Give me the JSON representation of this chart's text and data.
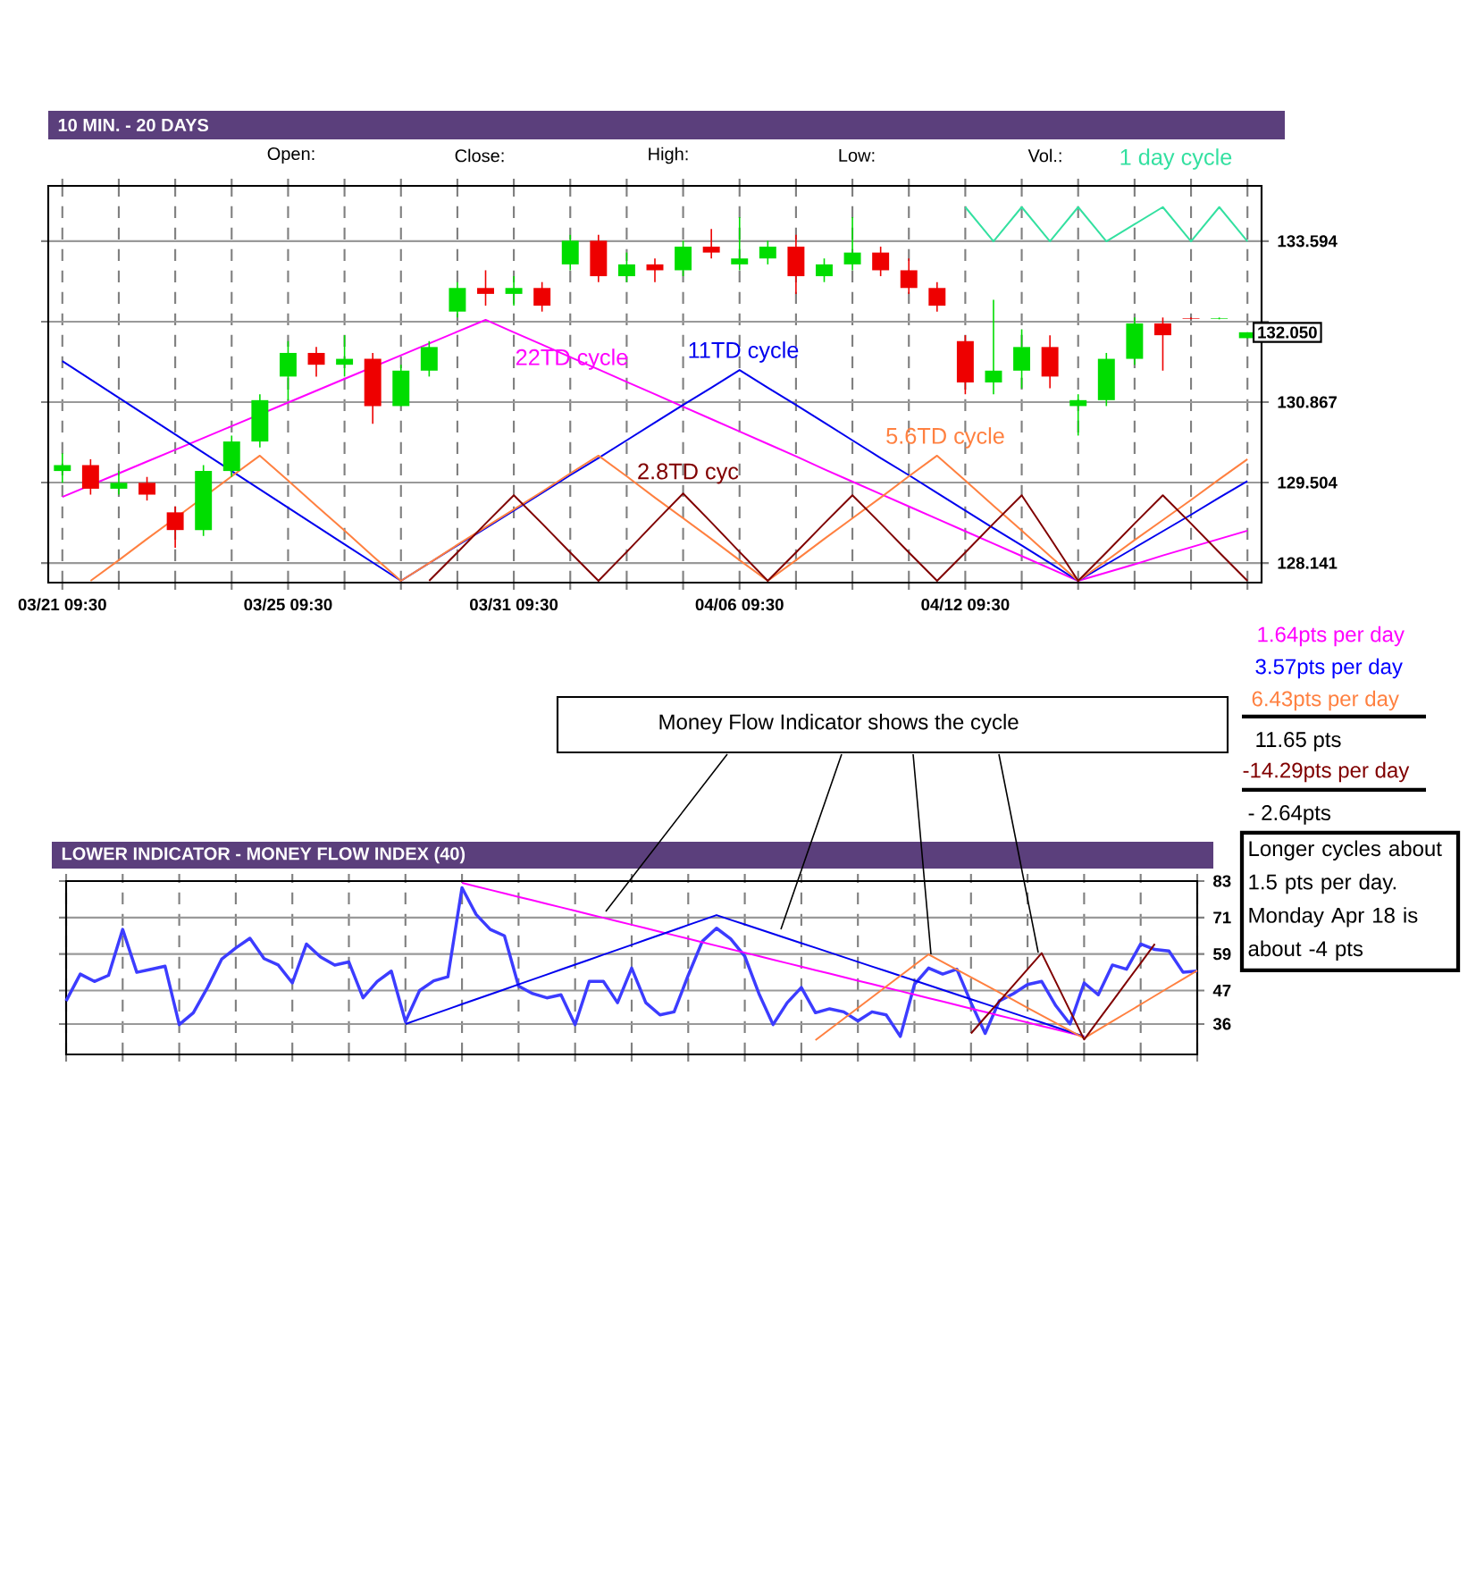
{
  "chart_data": [
    {
      "type": "candlestick",
      "title": "10 MIN. - 20 DAYS",
      "categories": [
        "03/21 09:30",
        null,
        null,
        null,
        null,
        null,
        null,
        null,
        "03/25 09:30",
        null,
        null,
        null,
        null,
        null,
        null,
        null,
        "03/31 09:30",
        null,
        null,
        null,
        null,
        null,
        null,
        null,
        "04/06 09:30",
        null,
        null,
        null,
        null,
        null,
        null,
        null,
        "04/12 09:30",
        null,
        null,
        null,
        null,
        null,
        null,
        null,
        null,
        null,
        null
      ],
      "ohlc": [
        [
          129.7,
          130.0,
          129.5,
          129.8
        ],
        [
          129.8,
          129.9,
          129.3,
          129.4
        ],
        [
          129.4,
          129.7,
          129.3,
          129.5
        ],
        [
          129.5,
          129.6,
          129.2,
          129.3
        ],
        [
          129.0,
          129.1,
          128.4,
          128.7
        ],
        [
          128.7,
          129.8,
          128.6,
          129.7
        ],
        [
          129.7,
          130.3,
          129.6,
          130.2
        ],
        [
          130.2,
          131.0,
          130.1,
          130.9
        ],
        [
          131.3,
          131.9,
          130.9,
          131.7
        ],
        [
          131.7,
          131.8,
          131.3,
          131.5
        ],
        [
          131.5,
          132.0,
          131.3,
          131.6
        ],
        [
          131.6,
          131.7,
          130.5,
          130.8
        ],
        [
          130.8,
          131.5,
          130.8,
          131.4
        ],
        [
          131.4,
          131.9,
          131.3,
          131.8
        ],
        [
          132.4,
          132.9,
          132.3,
          132.8
        ],
        [
          132.8,
          133.1,
          132.5,
          132.7
        ],
        [
          132.7,
          133.0,
          132.5,
          132.8
        ],
        [
          132.8,
          132.9,
          132.4,
          132.5
        ],
        [
          133.2,
          133.7,
          133.1,
          133.6
        ],
        [
          133.6,
          133.7,
          132.9,
          133.0
        ],
        [
          133.0,
          133.4,
          132.9,
          133.2
        ],
        [
          133.2,
          133.3,
          132.9,
          133.1
        ],
        [
          133.1,
          133.6,
          133.0,
          133.5
        ],
        [
          133.5,
          133.8,
          133.3,
          133.4
        ],
        [
          133.2,
          134.0,
          133.1,
          133.3
        ],
        [
          133.3,
          133.6,
          133.2,
          133.5
        ],
        [
          133.5,
          133.7,
          132.7,
          133.0
        ],
        [
          133.0,
          133.3,
          132.9,
          133.2
        ],
        [
          133.2,
          134.0,
          133.1,
          133.4
        ],
        [
          133.4,
          133.5,
          133.0,
          133.1
        ],
        [
          133.1,
          133.3,
          132.7,
          132.8
        ],
        [
          132.8,
          132.9,
          132.4,
          132.5
        ],
        [
          131.9,
          132.0,
          131.0,
          131.2
        ],
        [
          131.2,
          132.6,
          131.0,
          131.4
        ],
        [
          131.4,
          132.1,
          131.1,
          131.8
        ],
        [
          131.8,
          132.0,
          131.1,
          131.3
        ],
        [
          130.8,
          131.0,
          130.3,
          130.9
        ],
        [
          130.9,
          131.7,
          130.8,
          131.6
        ],
        [
          131.6,
          132.3,
          131.5,
          132.2
        ],
        [
          132.2,
          132.3,
          131.4,
          132.0
        ],
        [
          132.29,
          132.3,
          132.27,
          132.28
        ],
        [
          132.28,
          132.3,
          132.27,
          132.29
        ],
        [
          131.95,
          132.05,
          131.95,
          132.05
        ]
      ],
      "colors": [
        "#00dd00",
        "#ee0000",
        "#00dd00",
        "#ee0000",
        "#ee0000",
        "#00dd00",
        "#00dd00",
        "#00dd00",
        "#00dd00",
        "#ee0000",
        "#00dd00",
        "#ee0000",
        "#00dd00",
        "#00dd00",
        "#00dd00",
        "#ee0000",
        "#00dd00",
        "#ee0000",
        "#00dd00",
        "#ee0000",
        "#00dd00",
        "#ee0000",
        "#00dd00",
        "#ee0000",
        "#00dd00",
        "#00dd00",
        "#ee0000",
        "#00dd00",
        "#00dd00",
        "#ee0000",
        "#ee0000",
        "#ee0000",
        "#ee0000",
        "#00dd00",
        "#00dd00",
        "#ee0000",
        "#00dd00",
        "#00dd00",
        "#00dd00",
        "#ee0000",
        "#ee0000",
        "#00dd00",
        "#00dd00"
      ],
      "series": [
        {
          "type": "line",
          "color": "#ff00ff",
          "values": [
            129.26,
            null,
            129.66,
            129.86,
            130.06,
            130.26,
            130.46,
            null,
            130.86,
            131.06,
            131.26,
            null,
            131.66,
            131.86,
            132.06,
            132.26,
            132.05,
            131.84,
            131.63,
            131.42,
            131.21,
            131.0,
            130.79,
            130.58,
            130.37,
            130.16,
            129.95,
            129.73,
            129.52,
            129.31,
            129.1,
            128.89,
            128.68,
            128.47,
            128.26,
            128.05,
            127.84,
            127.98,
            128.12,
            128.27,
            128.41,
            128.55,
            128.69
          ]
        },
        {
          "type": "line",
          "color": "#0000ee",
          "values": [
            131.56,
            131.25,
            130.94,
            130.63,
            130.32,
            130.01,
            129.7,
            129.39,
            129.08,
            128.77,
            128.46,
            128.15,
            127.84,
            null,
            128.44,
            128.73,
            129.03,
            129.33,
            129.63,
            129.92,
            130.22,
            130.52,
            130.82,
            131.11,
            131.41,
            131.11,
            130.82,
            130.52,
            130.22,
            129.92,
            129.63,
            129.33,
            129.03,
            128.73,
            128.44,
            128.14,
            127.84,
            128.12,
            128.4,
            128.68,
            128.96,
            129.25,
            129.53
          ]
        },
        {
          "type": "line",
          "color": "#ff8040",
          "values": [
            null,
            127.84,
            128.19,
            128.55,
            128.9,
            null,
            129.61,
            129.96,
            129.54,
            129.11,
            128.69,
            128.26,
            127.84,
            128.14,
            128.45,
            128.75,
            129.05,
            129.35,
            129.66,
            129.96,
            129.61,
            129.25,
            128.9,
            128.55,
            128.19,
            127.84,
            128.19,
            128.55,
            128.9,
            129.25,
            129.61,
            129.96,
            129.54,
            129.11,
            128.69,
            128.26,
            127.84,
            128.18,
            128.53,
            128.87,
            129.21,
            129.56,
            129.9
          ]
        },
        {
          "type": "line",
          "color": "#800000",
          "values": [
            null,
            null,
            null,
            null,
            null,
            null,
            null,
            null,
            null,
            null,
            null,
            null,
            null,
            127.84,
            128.32,
            128.81,
            129.29,
            128.81,
            128.32,
            127.84,
            128.33,
            128.83,
            129.32,
            128.83,
            128.33,
            127.84,
            128.32,
            128.81,
            129.29,
            128.81,
            128.32,
            127.84,
            128.32,
            128.81,
            129.29,
            128.57,
            127.84,
            128.32,
            128.81,
            129.29,
            128.81,
            128.32,
            127.84
          ]
        },
        {
          "type": "line",
          "name": "1 day cycle",
          "color": "#33e0a0",
          "values": [
            null,
            null,
            null,
            null,
            null,
            null,
            null,
            null,
            null,
            null,
            null,
            null,
            null,
            null,
            null,
            null,
            null,
            null,
            null,
            null,
            null,
            null,
            null,
            null,
            null,
            null,
            null,
            null,
            null,
            null,
            null,
            null,
            134.17,
            133.59,
            134.17,
            133.59,
            134.17,
            133.59,
            133.88,
            134.17,
            133.59,
            134.17,
            133.59
          ]
        }
      ],
      "ylim": [
        127.81,
        134.53
      ],
      "yticks": [
        {
          "value": 128.141,
          "label": "128.141"
        },
        {
          "value": 129.504,
          "label": "129.504"
        },
        {
          "value": 130.867,
          "label": "130.867"
        },
        {
          "value": 132.23,
          "label": null
        },
        {
          "value": 133.594,
          "label": "133.594"
        }
      ],
      "grid": true,
      "annotations": [
        "Open:",
        "Close:",
        "High:",
        "Low:",
        "Vol.:",
        "22TD cycle",
        "11TD cycle",
        "5.6TD cycle",
        "2.8TD cyc",
        "132.050"
      ]
    },
    {
      "type": "line",
      "title": "LOWER INDICATOR - MONEY FLOW INDEX (40)",
      "categories": [
        null,
        null,
        null,
        null,
        null,
        null,
        null,
        null,
        null,
        null,
        null,
        null,
        null,
        null,
        null,
        null,
        null,
        null,
        null,
        null,
        null,
        null,
        null,
        null,
        null,
        null,
        null,
        null,
        null,
        null,
        null,
        null,
        null,
        null,
        null,
        null,
        null,
        null,
        null,
        null,
        null,
        null,
        null,
        null,
        null,
        null,
        null,
        null,
        null,
        null,
        null,
        null,
        null,
        null,
        null,
        null,
        null,
        null,
        null,
        null,
        null,
        null,
        null,
        null,
        null,
        null,
        null,
        null,
        null,
        null,
        null,
        null,
        null,
        null,
        null,
        null,
        null,
        null,
        null,
        null,
        null
      ],
      "series": [
        {
          "color": "#3c3cff",
          "values": [
            43.6,
            52.4,
            50,
            52,
            67.1,
            53,
            54,
            55,
            35.8,
            39.7,
            48,
            57.3,
            61,
            64.2,
            57.5,
            55.4,
            49.5,
            62.3,
            58,
            55.4,
            56.4,
            44.6,
            50,
            53.4,
            36.8,
            47,
            50.2,
            51.5,
            80.8,
            72,
            67.1,
            65,
            48.5,
            46,
            44.6,
            45.6,
            35.8,
            50,
            50,
            43,
            54.4,
            43,
            39,
            40,
            52,
            63.2,
            67.5,
            64,
            58.3,
            46,
            35.8,
            43,
            48,
            39.7,
            41,
            40,
            37,
            40,
            39,
            31.9,
            49,
            54.4,
            52.4,
            54,
            43,
            32.9,
            43.6,
            46,
            49,
            50,
            42,
            36,
            49.5,
            45.6,
            55.4,
            54,
            62.3,
            60.5,
            60,
            53,
            53.4
          ]
        },
        {
          "color": "#ff00ff",
          "values": [
            null,
            null,
            null,
            null,
            null,
            null,
            null,
            null,
            null,
            null,
            null,
            null,
            null,
            null,
            null,
            null,
            null,
            null,
            null,
            null,
            null,
            null,
            null,
            null,
            null,
            null,
            null,
            null,
            82.4,
            81.25,
            80.1,
            78.96,
            77.81,
            76.66,
            75.51,
            74.37,
            73.22,
            72.07,
            70.92,
            69.78,
            68.63,
            67.48,
            66.33,
            65.18,
            64.04,
            62.89,
            61.74,
            60.59,
            59.45,
            58.3,
            57.15,
            56.0,
            54.86,
            53.71,
            52.56,
            51.41,
            50.26,
            49.12,
            47.97,
            46.82,
            45.67,
            44.53,
            43.38,
            42.23,
            41.08,
            39.94,
            38.79,
            37.64,
            36.49,
            35.34,
            34.2,
            33.05,
            31.9,
            null,
            null,
            null,
            null,
            null,
            null,
            null,
            null
          ]
        },
        {
          "color": "#0000ee",
          "values": [
            null,
            null,
            null,
            null,
            null,
            null,
            null,
            null,
            null,
            null,
            null,
            null,
            null,
            null,
            null,
            null,
            null,
            null,
            null,
            null,
            null,
            null,
            null,
            null,
            36,
            37.63,
            39.25,
            40.88,
            42.51,
            44.14,
            45.76,
            47.39,
            49.02,
            50.65,
            52.27,
            53.9,
            55.53,
            57.15,
            58.78,
            60.41,
            62.04,
            63.66,
            65.29,
            66.92,
            68.55,
            70.17,
            71.8,
            70.27,
            68.73,
            67.2,
            65.66,
            64.13,
            62.59,
            61.06,
            59.52,
            57.98,
            56.45,
            54.91,
            53.38,
            51.84,
            50.31,
            48.77,
            47.23,
            45.7,
            44.16,
            42.63,
            41.09,
            39.56,
            38.02,
            36.48,
            34.95,
            33.41,
            31.9,
            null,
            null,
            null,
            null,
            null,
            null,
            null,
            null
          ]
        },
        {
          "color": "#ff8040",
          "values": [
            null,
            null,
            null,
            null,
            null,
            null,
            null,
            null,
            null,
            null,
            null,
            null,
            null,
            null,
            null,
            null,
            null,
            null,
            null,
            null,
            null,
            null,
            null,
            null,
            null,
            null,
            null,
            null,
            null,
            null,
            null,
            null,
            null,
            null,
            null,
            null,
            null,
            null,
            null,
            null,
            null,
            null,
            null,
            null,
            null,
            null,
            null,
            null,
            null,
            null,
            null,
            null,
            null,
            30.7,
            34.23,
            37.75,
            41.28,
            44.8,
            48.33,
            51.85,
            55.38,
            58.9,
            56.39,
            53.88,
            51.37,
            48.86,
            46.35,
            43.85,
            41.34,
            38.83,
            36.32,
            33.81,
            31.3,
            34.09,
            36.88,
            39.66,
            42.45,
            45.24,
            48.03,
            50.81,
            53.6
          ]
        },
        {
          "color": "#800000",
          "values": [
            null,
            null,
            null,
            null,
            null,
            null,
            null,
            null,
            null,
            null,
            null,
            null,
            null,
            null,
            null,
            null,
            null,
            null,
            null,
            null,
            null,
            null,
            null,
            null,
            null,
            null,
            null,
            null,
            null,
            null,
            null,
            null,
            null,
            null,
            null,
            null,
            null,
            null,
            null,
            null,
            null,
            null,
            null,
            null,
            null,
            null,
            null,
            null,
            null,
            null,
            null,
            null,
            null,
            null,
            null,
            null,
            null,
            null,
            null,
            null,
            null,
            null,
            null,
            null,
            32.9,
            38.18,
            43.46,
            48.74,
            54.02,
            59.3,
            49.83,
            40.37,
            30.9,
            37.18,
            43.46,
            49.74,
            56.02,
            62.3,
            null,
            null,
            null
          ]
        }
      ],
      "ylim": [
        26,
        83
      ],
      "yticks": [
        83,
        71,
        59,
        47,
        36
      ],
      "grid": true,
      "tick_labels": "y",
      "annotations": [
        "Money Flow Indicator shows the cycle"
      ]
    },
    {
      "type": "other",
      "annotations": [
        "1.64pts per day",
        "3.57pts per day",
        "6.43pts per day",
        "11.65 pts",
        "-14.29pts per day",
        "- 2.64pts",
        "Longer cycles about 1.5 pts per day. Monday Apr 18 is about -4 pts"
      ]
    }
  ]
}
